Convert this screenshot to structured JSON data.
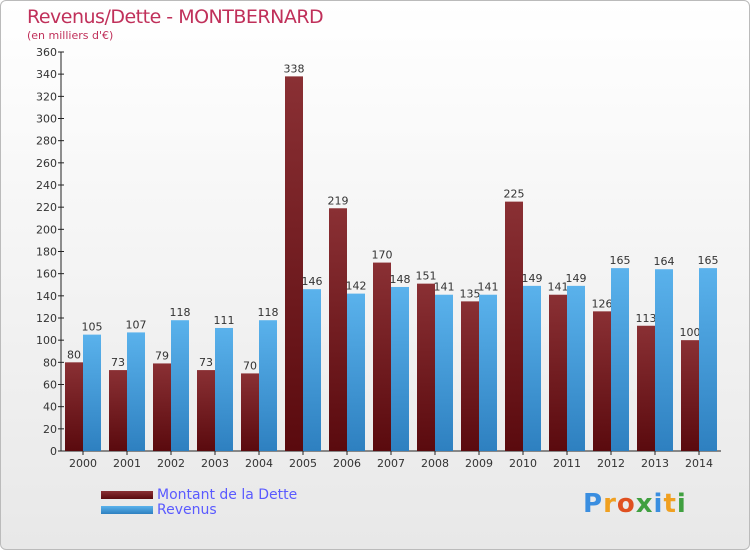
{
  "chart_data": {
    "type": "bar",
    "title": "Revenus/Dette - MONTBERNARD",
    "subtitle": "(en milliers d'€)",
    "xlabel": "",
    "ylabel": "",
    "ylim": [
      0,
      360
    ],
    "yticks": [
      0,
      20,
      40,
      60,
      80,
      100,
      120,
      140,
      160,
      180,
      200,
      220,
      240,
      260,
      280,
      300,
      320,
      340,
      360
    ],
    "categories": [
      "2000",
      "2001",
      "2002",
      "2003",
      "2004",
      "2005",
      "2006",
      "2007",
      "2008",
      "2009",
      "2010",
      "2011",
      "2012",
      "2013",
      "2014"
    ],
    "series": [
      {
        "name": "Montant de la Dette",
        "color": "#7a1e22",
        "values": [
          80,
          73,
          79,
          73,
          70,
          338,
          219,
          170,
          151,
          135,
          225,
          141,
          126,
          113,
          100
        ]
      },
      {
        "name": "Revenus",
        "color": "#4da6e6",
        "values": [
          105,
          107,
          118,
          111,
          118,
          146,
          142,
          148,
          141,
          141,
          149,
          149,
          165,
          164,
          165
        ]
      }
    ],
    "legend_position": "bottom-left"
  },
  "logo": {
    "text": "Proxiti"
  }
}
